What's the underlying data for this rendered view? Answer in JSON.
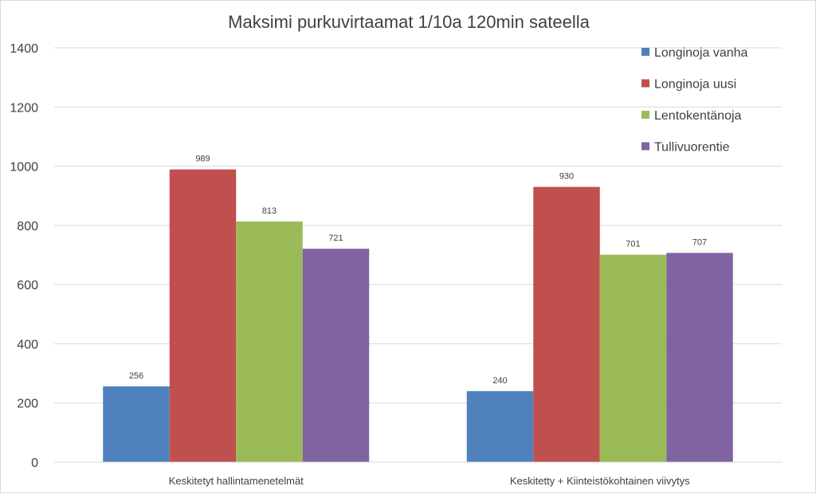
{
  "chart_data": {
    "type": "bar",
    "title": "Maksimi purkuvirtaamat 1/10a 120min sateella",
    "xlabel": "",
    "ylabel": "",
    "ylim": [
      0,
      1400
    ],
    "yticks": [
      0,
      200,
      400,
      600,
      800,
      1000,
      1200,
      1400
    ],
    "grid": true,
    "legend_position": "top-right",
    "categories": [
      "Keskitetyt hallintamenetelmät",
      "Keskitetty + Kiinteistökohtainen viivytys"
    ],
    "series": [
      {
        "name": "Longinoja vanha",
        "color": "#4f81bd",
        "values": [
          256,
          240
        ]
      },
      {
        "name": "Longinoja uusi",
        "color": "#c0504d",
        "values": [
          989,
          930
        ]
      },
      {
        "name": "Lentokentänoja",
        "color": "#9bbb59",
        "values": [
          813,
          701
        ]
      },
      {
        "name": "Tullivuorentie",
        "color": "#8064a2",
        "values": [
          721,
          707
        ]
      }
    ]
  }
}
